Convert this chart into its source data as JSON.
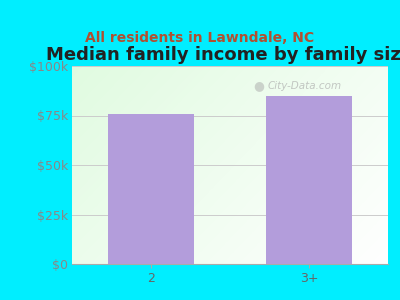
{
  "title": "Median family income by family size",
  "subtitle": "All residents in Lawndale, NC",
  "categories": [
    "2",
    "3+"
  ],
  "values": [
    76000,
    85000
  ],
  "bar_color": "#b39ddb",
  "background_outer": "#00eeff",
  "ylim": [
    0,
    100000
  ],
  "yticks": [
    0,
    25000,
    50000,
    75000,
    100000
  ],
  "ytick_labels": [
    "$0",
    "$25k",
    "$50k",
    "$75k",
    "$100k"
  ],
  "title_fontsize": 13,
  "subtitle_fontsize": 10,
  "tick_label_fontsize": 9,
  "bar_width": 0.55,
  "watermark": "City-Data.com",
  "title_color": "#222222",
  "subtitle_color": "#b05030",
  "tick_color": "#888888",
  "xtick_color": "#666666",
  "grid_color": "#cccccc"
}
